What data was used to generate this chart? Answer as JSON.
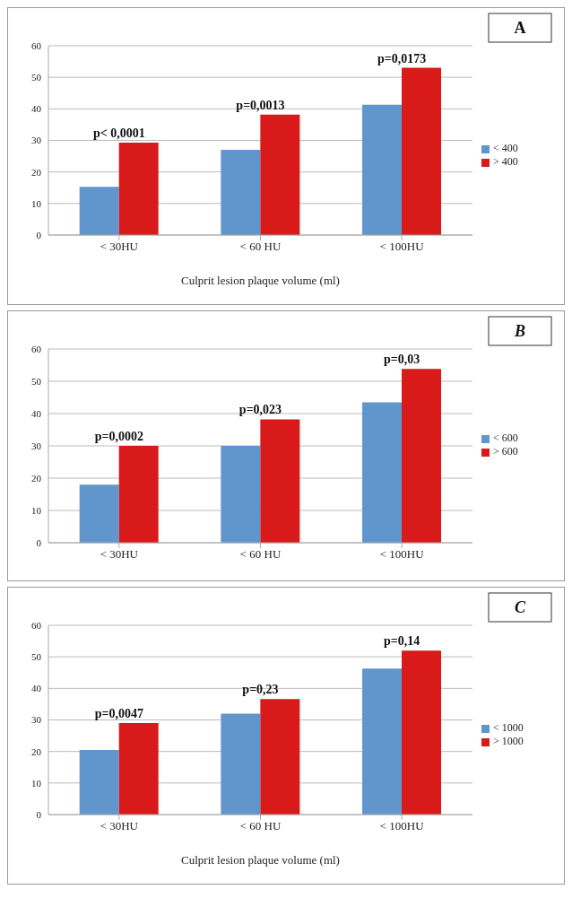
{
  "chart_data": [
    {
      "type": "bar",
      "categories": [
        "<  30HU",
        "< 60 HU",
        "< 100HU"
      ],
      "xlabel": "Culprit lesion plaque volume (ml)",
      "series": [
        {
          "name": "< 400",
          "color": "#6096cc",
          "values": [
            15.3,
            27,
            41.3
          ]
        },
        {
          "name": "> 400",
          "color": "#d91a1a",
          "values": [
            29.3,
            38.2,
            53
          ]
        }
      ],
      "ylim": [
        0,
        60
      ],
      "yticks": [
        0,
        10,
        20,
        30,
        40,
        50,
        60
      ],
      "grid": "y",
      "legend": "right",
      "annotations": [
        "A",
        {
          "text": "p< 0,0001",
          "x": "<  30HU",
          "y": 29.3
        },
        {
          "text": "p=0,0013",
          "x": "< 60 HU",
          "y": 38.2
        },
        {
          "text": "p=0,0173",
          "x": "< 100HU",
          "y": 53
        }
      ]
    },
    {
      "type": "bar",
      "categories": [
        "<  30HU",
        "< 60 HU",
        "< 100HU"
      ],
      "series": [
        {
          "name": "< 600",
          "color": "#6096cc",
          "values": [
            18,
            30,
            43.5
          ]
        },
        {
          "name": "> 600",
          "color": "#d91a1a",
          "values": [
            30,
            38.2,
            53.8
          ]
        }
      ],
      "ylim": [
        0,
        60
      ],
      "yticks": [
        0,
        10,
        20,
        30,
        40,
        50,
        60
      ],
      "grid": "y",
      "legend": "right",
      "annotations": [
        "B",
        {
          "text": "p=0,0002",
          "x": "<  30HU",
          "y": 30
        },
        {
          "text": "p=0,023",
          "x": "< 60 HU",
          "y": 38.2
        },
        {
          "text": "p=0,03",
          "x": "< 100HU",
          "y": 53.8
        }
      ]
    },
    {
      "type": "bar",
      "categories": [
        "<  30HU",
        "< 60 HU",
        "< 100HU"
      ],
      "xlabel": "Culprit lesion plaque volume (ml)",
      "series": [
        {
          "name": "< 1000",
          "color": "#6096cc",
          "values": [
            20.5,
            32,
            46.3
          ]
        },
        {
          "name": "> 1000",
          "color": "#d91a1a",
          "values": [
            29,
            36.6,
            52
          ]
        }
      ],
      "ylim": [
        0,
        60
      ],
      "yticks": [
        0,
        10,
        20,
        30,
        40,
        50,
        60
      ],
      "grid": "y",
      "legend": "right",
      "annotations": [
        "C",
        {
          "text": "p=0,0047",
          "x": "<  30HU",
          "y": 29
        },
        {
          "text": "p=0,23",
          "x": "< 60 HU",
          "y": 36.6
        },
        {
          "text": "p=0,14",
          "x": "< 100HU",
          "y": 52
        }
      ]
    }
  ]
}
